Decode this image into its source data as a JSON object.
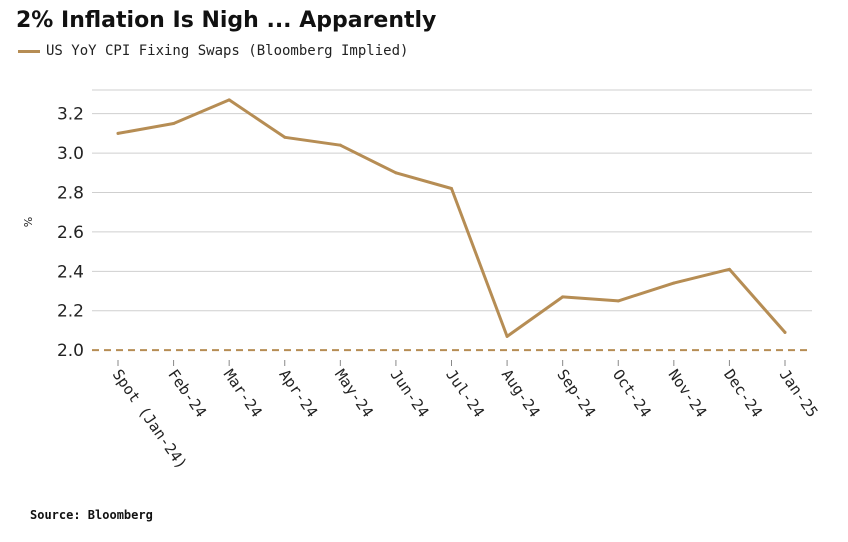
{
  "title": "2% Inflation Is Nigh ... Apparently",
  "source": "Source: Bloomberg",
  "colors": {
    "series": "#b68d54",
    "grid": "#cfcfcf",
    "threshold": "#b68d54"
  },
  "chart_data": {
    "type": "line",
    "title": "2% Inflation Is Nigh ... Apparently",
    "ylabel": "%",
    "ylim": [
      1.95,
      3.32
    ],
    "yticks": [
      "2.0",
      "2.2",
      "2.4",
      "2.6",
      "2.8",
      "3.0",
      "3.2"
    ],
    "grid": true,
    "legend": "top-left",
    "categories": [
      "Spot (Jan-24)",
      "Feb-24",
      "Mar-24",
      "Apr-24",
      "May-24",
      "Jun-24",
      "Jul-24",
      "Aug-24",
      "Sep-24",
      "Oct-24",
      "Nov-24",
      "Dec-24",
      "Jan-25"
    ],
    "series": [
      {
        "name": "US YoY CPI Fixing Swaps (Bloomberg Implied)",
        "values": [
          3.1,
          3.15,
          3.27,
          3.08,
          3.04,
          2.9,
          2.82,
          2.07,
          2.27,
          2.25,
          2.34,
          2.41,
          2.09
        ]
      }
    ],
    "reference_line": {
      "y": 2.0,
      "style": "dashed"
    }
  }
}
